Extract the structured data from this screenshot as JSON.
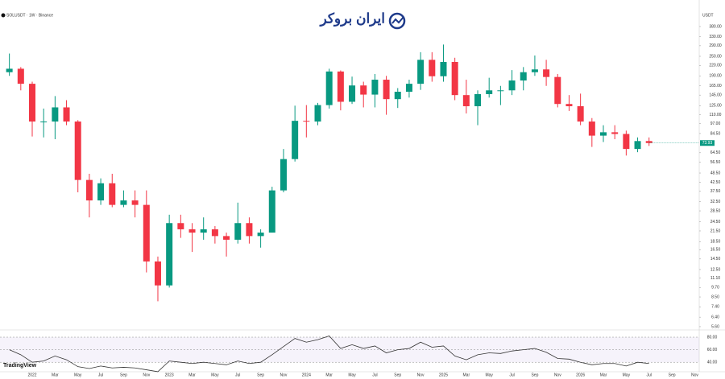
{
  "header": {
    "symbol": "SOLUSDT · 1W · Binance",
    "logo": "ایران بروکر",
    "currency": "USDT",
    "brand": "TradingView"
  },
  "chart_data": {
    "type": "candlestick",
    "log_scale": true,
    "up_color": "#089981",
    "down_color": "#f23645",
    "categories": [
      null,
      null,
      "2022",
      null,
      "Mar",
      null,
      "May",
      null,
      "Jul",
      null,
      "Sep",
      null,
      "Nov",
      null,
      "2023",
      null,
      "Mar",
      null,
      "May",
      null,
      "Jul",
      null,
      "Sep",
      null,
      "Nov",
      null,
      "2024",
      null,
      "Mar",
      null,
      "May",
      null,
      "Jul",
      null,
      "Sep",
      null,
      "Nov",
      null,
      "2025",
      null,
      "Mar",
      null,
      "May",
      null,
      "Jul",
      null,
      "Sep",
      null,
      "Nov",
      null,
      "2026",
      null,
      "Mar",
      null,
      "May",
      null,
      "Jul",
      null,
      "Sep",
      null,
      "Nov"
    ],
    "open": [
      200,
      210,
      170,
      100,
      100,
      122,
      100,
      44,
      33,
      42,
      31,
      33,
      31,
      14,
      10,
      24,
      22,
      21,
      22,
      20,
      19,
      24,
      20,
      21,
      38,
      59,
      101,
      100,
      126,
      202,
      132,
      166,
      146,
      180,
      137,
      152,
      170,
      238,
      189,
      231,
      145,
      124,
      147,
      155,
      155,
      178,
      200,
      208,
      187,
      128,
      124,
      100,
      82,
      86,
      84,
      68,
      76,
      null,
      null,
      null,
      null
    ],
    "high": [
      260,
      215,
      175,
      120,
      143,
      135,
      102,
      48,
      45,
      48,
      38,
      38,
      38,
      15,
      27,
      27,
      24,
      26,
      23,
      21,
      32,
      26,
      22,
      40,
      68,
      125,
      126,
      130,
      210,
      205,
      188,
      175,
      195,
      190,
      160,
      180,
      265,
      265,
      295,
      245,
      180,
      155,
      185,
      165,
      206,
      215,
      253,
      238,
      195,
      145,
      148,
      105,
      95,
      95,
      88,
      80,
      80,
      null,
      null,
      null,
      null
    ],
    "low": [
      190,
      155,
      81,
      80,
      78,
      95,
      37,
      26,
      31,
      30,
      30,
      26,
      12,
      8,
      9.7,
      19.5,
      16,
      19,
      18,
      15,
      18,
      18,
      17,
      21,
      37,
      57,
      80,
      95,
      120,
      117,
      128,
      122,
      122,
      110,
      121,
      140,
      156,
      175,
      175,
      135,
      112,
      95,
      140,
      126,
      145,
      155,
      190,
      165,
      122,
      116,
      95,
      70,
      75,
      78,
      62,
      65,
      71,
      null,
      null,
      null,
      null
    ],
    "close": [
      210,
      170,
      100,
      100,
      122,
      100,
      44,
      33,
      42,
      31,
      33,
      31,
      14,
      10,
      24,
      22,
      21,
      22,
      20,
      19,
      24,
      20,
      21,
      38,
      59,
      101,
      100,
      126,
      202,
      132,
      166,
      146,
      180,
      137,
      152,
      170,
      238,
      189,
      231,
      145,
      124,
      147,
      155,
      155,
      178,
      200,
      208,
      187,
      128,
      124,
      100,
      82,
      86,
      84,
      68,
      76,
      73.93,
      null,
      null,
      null,
      null
    ],
    "ylim": [
      5.35,
      440
    ],
    "yticks": [
      {
        "value": 380,
        "label": "380.00"
      },
      {
        "value": 330,
        "label": "330.00"
      },
      {
        "value": 290,
        "label": "290.00"
      },
      {
        "value": 250,
        "label": "250.00"
      },
      {
        "value": 220,
        "label": "220.00"
      },
      {
        "value": 190,
        "label": "190.00"
      },
      {
        "value": 165,
        "label": "165.00"
      },
      {
        "value": 145,
        "label": "145.00"
      },
      {
        "value": 125,
        "label": "125.00"
      },
      {
        "value": 110,
        "label": "110.00"
      },
      {
        "value": 97,
        "label": "97.00"
      },
      {
        "value": 84.5,
        "label": "84.50"
      },
      {
        "value": 64.5,
        "label": "64.50"
      },
      {
        "value": 56.5,
        "label": "56.50"
      },
      {
        "value": 48.5,
        "label": "48.50"
      },
      {
        "value": 42.5,
        "label": "42.50"
      },
      {
        "value": 37.5,
        "label": "37.50"
      },
      {
        "value": 32.5,
        "label": "32.50"
      },
      {
        "value": 28.5,
        "label": "28.50"
      },
      {
        "value": 24.5,
        "label": "24.50"
      },
      {
        "value": 21.5,
        "label": "21.50"
      },
      {
        "value": 18.5,
        "label": "18.50"
      },
      {
        "value": 16.5,
        "label": "16.50"
      },
      {
        "value": 14.5,
        "label": "14.50"
      },
      {
        "value": 12.5,
        "label": "12.50"
      },
      {
        "value": 11.1,
        "label": "11.10"
      },
      {
        "value": 9.7,
        "label": "9.70"
      },
      {
        "value": 8.5,
        "label": "8.50"
      },
      {
        "value": 7.4,
        "label": "7.40"
      },
      {
        "value": 6.4,
        "label": "6.40"
      },
      {
        "value": 5.6,
        "label": "5.60"
      }
    ],
    "rsi": {
      "color": "#333333",
      "values": [
        60,
        52,
        40,
        42,
        50,
        44,
        33,
        30,
        34,
        31,
        32,
        31,
        28,
        25,
        42,
        40,
        38,
        40,
        38,
        36,
        42,
        38,
        40,
        52,
        65,
        78,
        72,
        76,
        82,
        62,
        68,
        62,
        66,
        55,
        60,
        62,
        72,
        64,
        66,
        50,
        44,
        52,
        55,
        54,
        58,
        60,
        62,
        56,
        46,
        45,
        40,
        36,
        38,
        38,
        34,
        40,
        38,
        null,
        null,
        null,
        null
      ],
      "ylim": [
        30,
        89
      ],
      "yticks": [
        {
          "value": 80,
          "label": "80.00"
        },
        {
          "value": 60,
          "label": "60.00"
        },
        {
          "value": 40,
          "label": "40.00"
        }
      ]
    }
  }
}
